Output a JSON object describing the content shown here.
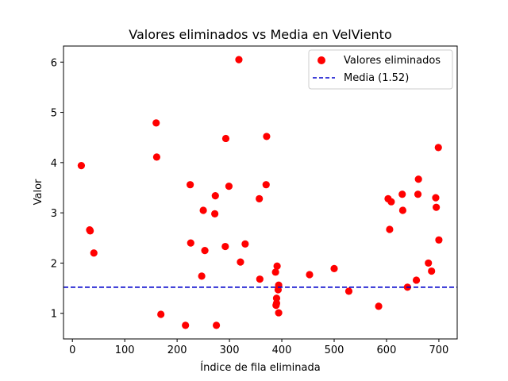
{
  "chart_data": {
    "type": "scatter",
    "title": "Valores eliminados vs Media en VelViento",
    "xlabel": "Índice de fila eliminada",
    "ylabel": "Valor",
    "xlim": [
      -17,
      735
    ],
    "ylim": [
      0.49,
      6.32
    ],
    "xticks": [
      0,
      100,
      200,
      300,
      400,
      500,
      600,
      700
    ],
    "yticks": [
      1,
      2,
      3,
      4,
      5,
      6
    ],
    "grid": false,
    "legend_position": "top-right",
    "series": [
      {
        "name": "Valores eliminados",
        "color": "#ff0000",
        "points": [
          [
            17,
            3.94
          ],
          [
            33,
            2.66
          ],
          [
            34,
            2.64
          ],
          [
            41,
            2.2
          ],
          [
            160,
            4.79
          ],
          [
            161,
            4.11
          ],
          [
            169,
            0.98
          ],
          [
            216,
            0.76
          ],
          [
            225,
            3.56
          ],
          [
            226,
            2.4
          ],
          [
            247,
            1.74
          ],
          [
            250,
            3.05
          ],
          [
            253,
            2.25
          ],
          [
            272,
            2.98
          ],
          [
            273,
            3.34
          ],
          [
            275,
            0.76
          ],
          [
            292,
            2.33
          ],
          [
            293,
            4.48
          ],
          [
            299,
            3.53
          ],
          [
            318,
            6.05
          ],
          [
            321,
            2.02
          ],
          [
            330,
            2.38
          ],
          [
            357,
            3.28
          ],
          [
            358,
            1.68
          ],
          [
            370,
            3.56
          ],
          [
            371,
            4.52
          ],
          [
            388,
            1.82
          ],
          [
            389,
            1.16
          ],
          [
            390,
            1.3
          ],
          [
            390,
            1.2
          ],
          [
            391,
            1.94
          ],
          [
            393,
            1.47
          ],
          [
            394,
            1.56
          ],
          [
            394,
            1.01
          ],
          [
            453,
            1.77
          ],
          [
            500,
            1.89
          ],
          [
            528,
            1.44
          ],
          [
            585,
            1.14
          ],
          [
            603,
            3.28
          ],
          [
            606,
            2.67
          ],
          [
            609,
            3.22
          ],
          [
            630,
            3.37
          ],
          [
            631,
            3.05
          ],
          [
            640,
            1.52
          ],
          [
            657,
            1.66
          ],
          [
            660,
            3.37
          ],
          [
            661,
            3.67
          ],
          [
            680,
            2.0
          ],
          [
            686,
            1.84
          ],
          [
            694,
            3.3
          ],
          [
            695,
            3.11
          ],
          [
            699,
            4.3
          ],
          [
            700,
            2.46
          ]
        ]
      }
    ],
    "reference_line": {
      "name": "Media (1.52)",
      "value": 1.52,
      "color": "#0000cc",
      "style": "dashed"
    }
  }
}
